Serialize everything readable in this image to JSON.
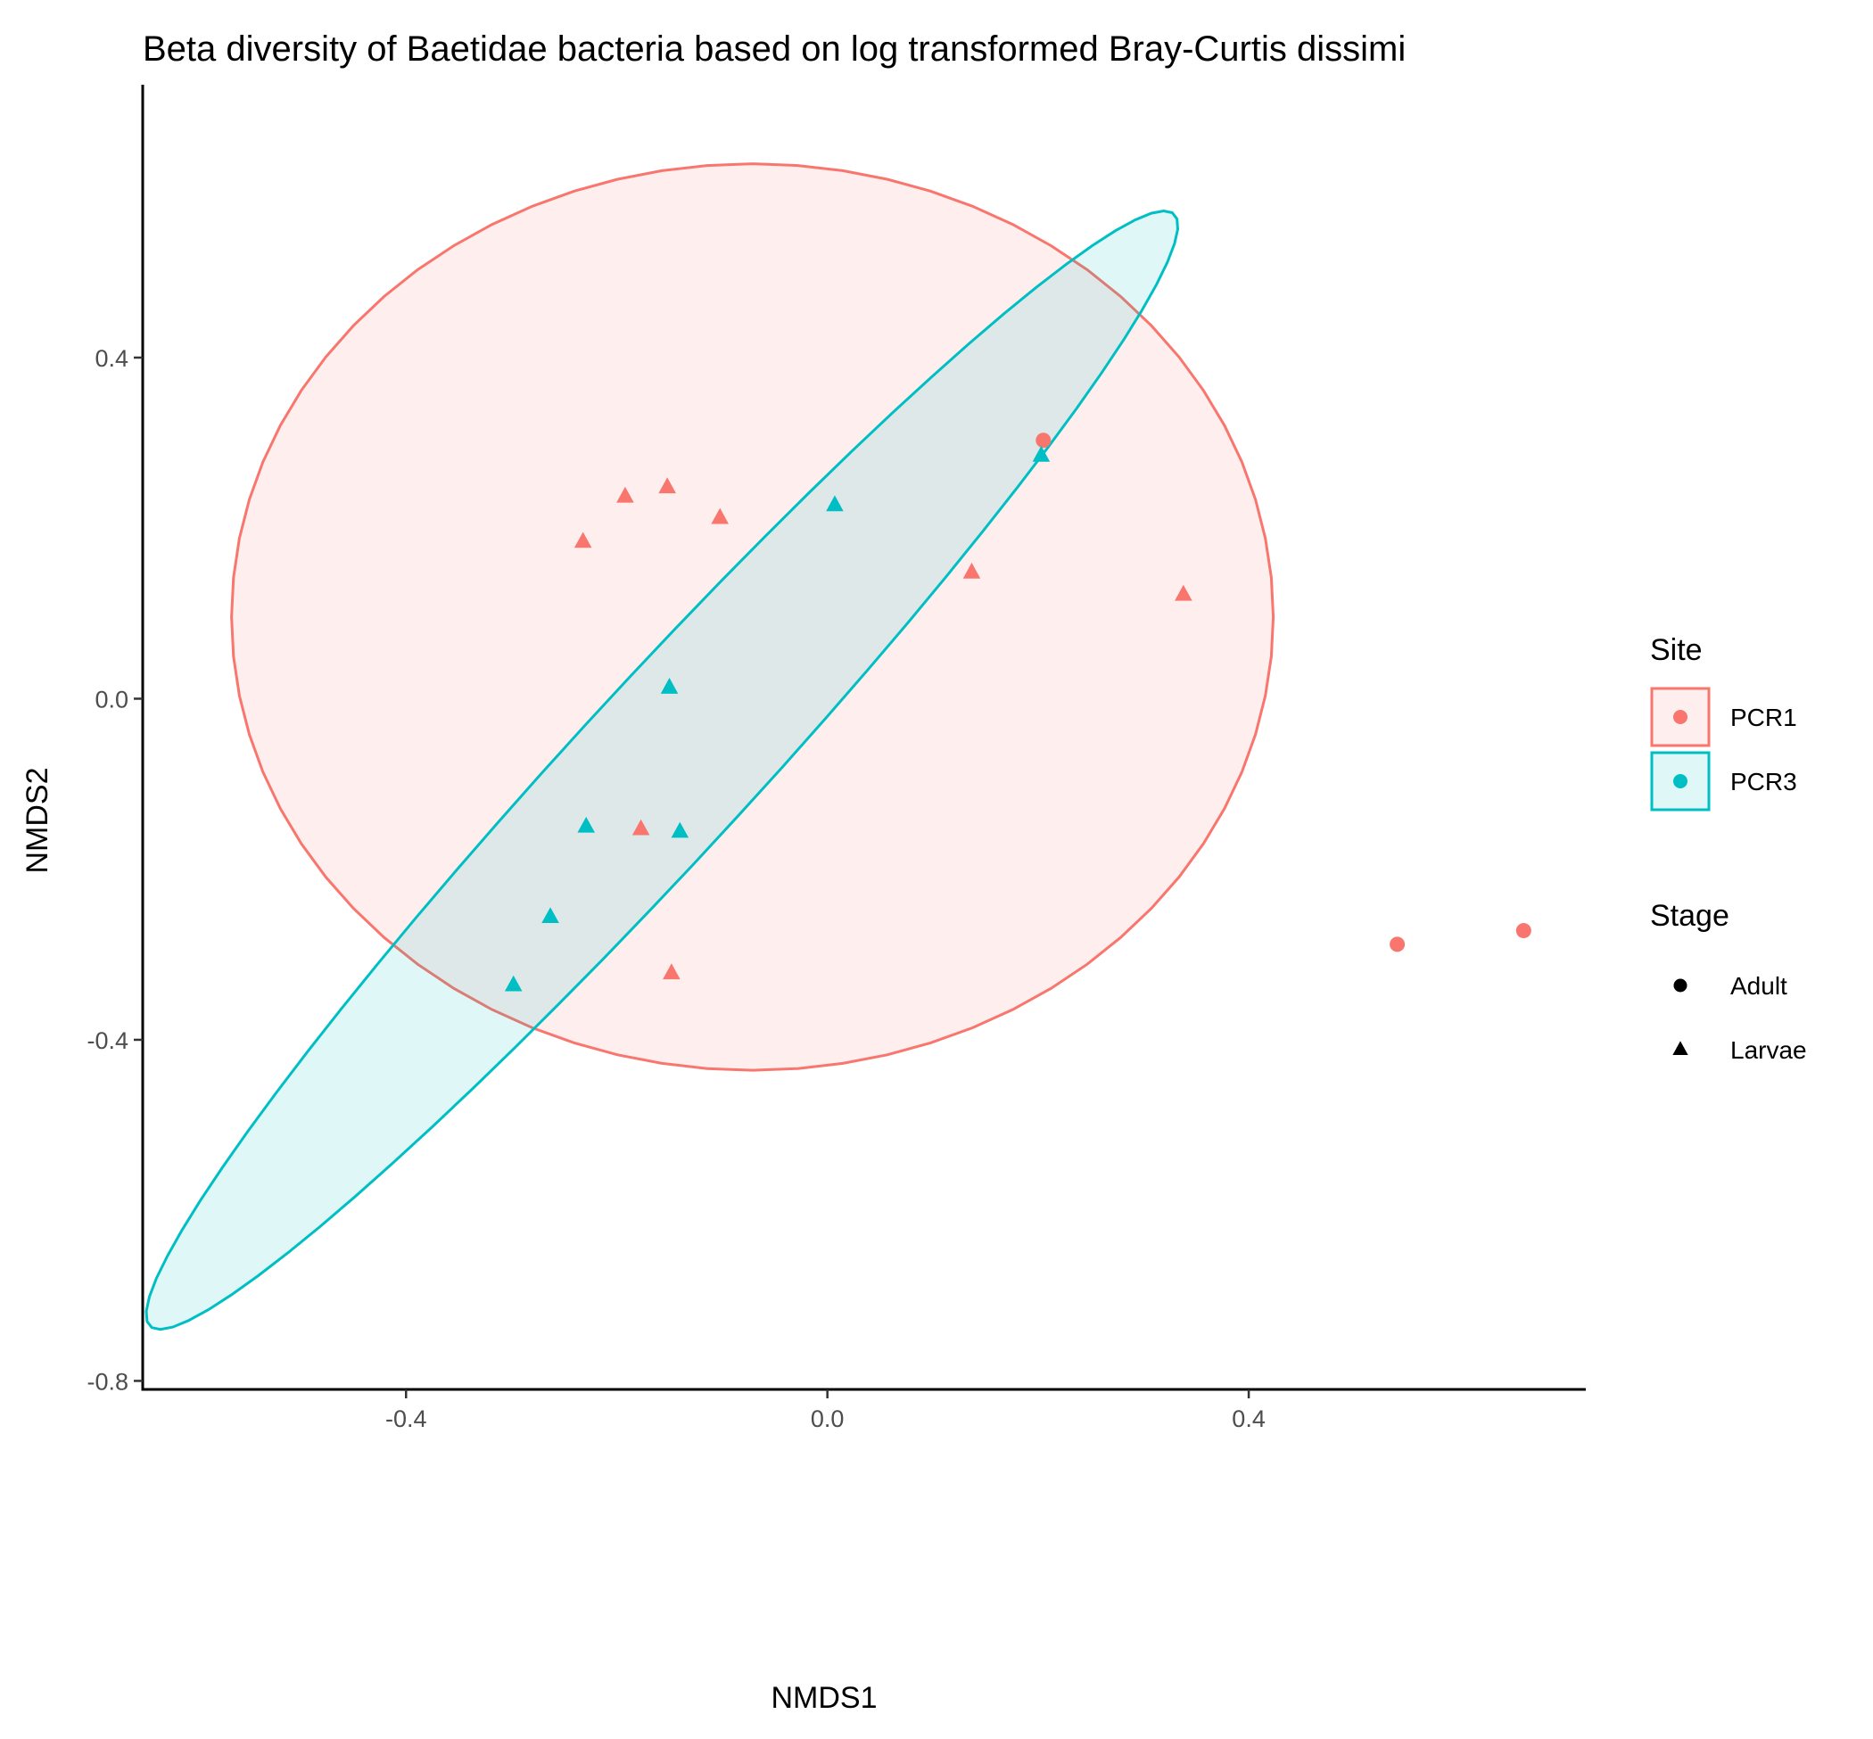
{
  "chart_data": {
    "type": "scatter",
    "title": "Beta diversity of Baetidae bacteria based on log transformed Bray-Curtis dissimi",
    "xlabel": "NMDS1",
    "ylabel": "NMDS2",
    "xlim": [
      -0.65,
      0.72
    ],
    "ylim": [
      -0.81,
      0.72
    ],
    "x_ticks": [
      -0.4,
      0.0,
      0.4
    ],
    "x_tick_labels": [
      "-0.4",
      "0.0",
      "0.4"
    ],
    "y_ticks": [
      -0.8,
      -0.4,
      0.0,
      0.4
    ],
    "y_tick_labels": [
      "-0.8",
      "-0.4",
      "0.0",
      "0.4"
    ],
    "grid": false,
    "legend_position": "right",
    "legends": [
      {
        "title": "Site",
        "entries": [
          {
            "label": "PCR1",
            "color": "#F8766D"
          },
          {
            "label": "PCR3",
            "color": "#00BFC4"
          }
        ]
      },
      {
        "title": "Stage",
        "entries": [
          {
            "label": "Adult",
            "shape": "circle"
          },
          {
            "label": "Larvae",
            "shape": "triangle"
          }
        ]
      }
    ],
    "colors": {
      "PCR1": "#F8766D",
      "PCR3": "#00BFC4"
    },
    "points": [
      {
        "x": 0.205,
        "y": 0.303,
        "site": "PCR1",
        "stage": "Adult"
      },
      {
        "x": 0.541,
        "y": -0.288,
        "site": "PCR1",
        "stage": "Adult"
      },
      {
        "x": 0.661,
        "y": -0.272,
        "site": "PCR1",
        "stage": "Adult"
      },
      {
        "x": -0.152,
        "y": 0.248,
        "site": "PCR1",
        "stage": "Larvae"
      },
      {
        "x": -0.192,
        "y": 0.237,
        "site": "PCR1",
        "stage": "Larvae"
      },
      {
        "x": -0.102,
        "y": 0.212,
        "site": "PCR1",
        "stage": "Larvae"
      },
      {
        "x": -0.232,
        "y": 0.184,
        "site": "PCR1",
        "stage": "Larvae"
      },
      {
        "x": 0.137,
        "y": 0.148,
        "site": "PCR1",
        "stage": "Larvae"
      },
      {
        "x": 0.338,
        "y": 0.122,
        "site": "PCR1",
        "stage": "Larvae"
      },
      {
        "x": -0.177,
        "y": -0.153,
        "site": "PCR1",
        "stage": "Larvae"
      },
      {
        "x": -0.148,
        "y": -0.322,
        "site": "PCR1",
        "stage": "Larvae"
      },
      {
        "x": 0.203,
        "y": 0.285,
        "site": "PCR3",
        "stage": "Larvae"
      },
      {
        "x": 0.007,
        "y": 0.227,
        "site": "PCR3",
        "stage": "Larvae"
      },
      {
        "x": -0.15,
        "y": 0.013,
        "site": "PCR3",
        "stage": "Larvae"
      },
      {
        "x": -0.229,
        "y": -0.15,
        "site": "PCR3",
        "stage": "Larvae"
      },
      {
        "x": -0.14,
        "y": -0.156,
        "site": "PCR3",
        "stage": "Larvae"
      },
      {
        "x": -0.263,
        "y": -0.256,
        "site": "PCR3",
        "stage": "Larvae"
      },
      {
        "x": -0.298,
        "y": -0.336,
        "site": "PCR3",
        "stage": "Larvae"
      }
    ],
    "ellipses": [
      {
        "site": "PCR1",
        "center": [
          -0.0712,
          0.0958
        ],
        "rx": 0.4945,
        "ry": 0.5315,
        "angle_deg": 0
      },
      {
        "site": "PCR3",
        "center": [
          -0.157,
          -0.0838
        ],
        "major": 0.8136,
        "minor": 0.09,
        "angle_deg": 53.46
      }
    ]
  }
}
